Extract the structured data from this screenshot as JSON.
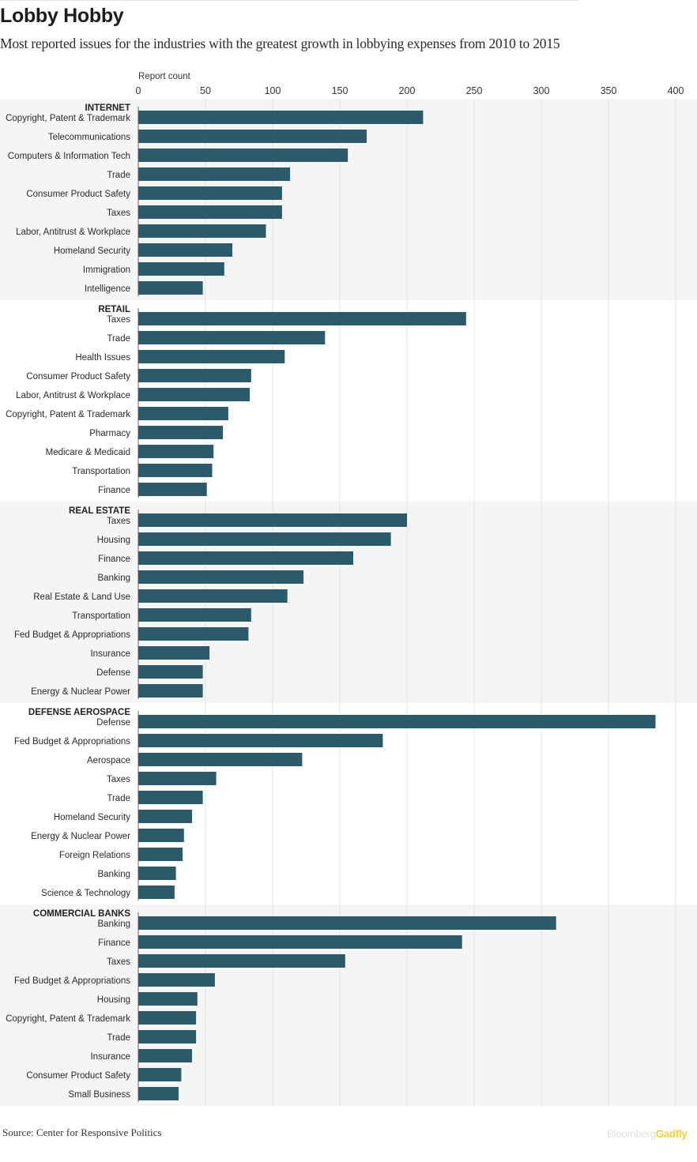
{
  "header": {
    "title": "Lobby Hobby",
    "subtitle": "Most reported issues for the industries with the greatest growth in lobbying expenses from 2010 to 2015"
  },
  "footer": {
    "source": "Source: Center for  Responsive Politics",
    "brand_part1": "Bloomberg",
    "brand_part2": "Gadfly"
  },
  "colors": {
    "bar": "#2b5a6b",
    "group_band": "#f5f5f5",
    "gridline": "#e3e3e3",
    "brand_accent": "#f4d03f"
  },
  "chart_data": {
    "type": "bar",
    "orientation": "horizontal",
    "axis_title": "Report count",
    "xlim": [
      0,
      400
    ],
    "ticks": [
      0,
      50,
      100,
      150,
      200,
      250,
      300,
      350,
      400
    ],
    "grid": true,
    "groups": [
      {
        "name": "INTERNET",
        "categories": [
          "Copyright, Patent & Trademark",
          "Telecommunications",
          "Computers & Information Tech",
          "Trade",
          "Consumer Product Safety",
          "Taxes",
          "Labor, Antitrust & Workplace",
          "Homeland Security",
          "Immigration",
          "Intelligence"
        ],
        "values": [
          212,
          170,
          156,
          113,
          107,
          107,
          95,
          70,
          64,
          48
        ]
      },
      {
        "name": "RETAIL",
        "categories": [
          "Taxes",
          "Trade",
          "Health Issues",
          "Consumer Product Safety",
          "Labor, Antitrust & Workplace",
          "Copyright, Patent & Trademark",
          "Pharmacy",
          "Medicare & Medicaid",
          "Transportation",
          "Finance"
        ],
        "values": [
          244,
          139,
          109,
          84,
          83,
          67,
          63,
          56,
          55,
          51
        ]
      },
      {
        "name": "REAL ESTATE",
        "categories": [
          "Taxes",
          "Housing",
          "Finance",
          "Banking",
          "Real Estate & Land Use",
          "Transportation",
          "Fed Budget & Appropriations",
          "Insurance",
          "Defense",
          "Energy & Nuclear Power"
        ],
        "values": [
          200,
          188,
          160,
          123,
          111,
          84,
          82,
          53,
          48,
          48
        ]
      },
      {
        "name": "DEFENSE AEROSPACE",
        "categories": [
          "Defense",
          "Fed Budget & Appropriations",
          "Aerospace",
          "Taxes",
          "Trade",
          "Homeland Security",
          "Energy & Nuclear Power",
          "Foreign Relations",
          "Banking",
          "Science & Technology"
        ],
        "values": [
          385,
          182,
          122,
          58,
          48,
          40,
          34,
          33,
          28,
          27
        ]
      },
      {
        "name": "COMMERCIAL BANKS",
        "categories": [
          "Banking",
          "Finance",
          "Taxes",
          "Fed Budget & Appropriations",
          "Housing",
          "Copyright, Patent & Trademark",
          "Trade",
          "Insurance",
          "Consumer Product Safety",
          "Small Business"
        ],
        "values": [
          311,
          241,
          154,
          57,
          44,
          43,
          43,
          40,
          32,
          30
        ]
      }
    ]
  }
}
